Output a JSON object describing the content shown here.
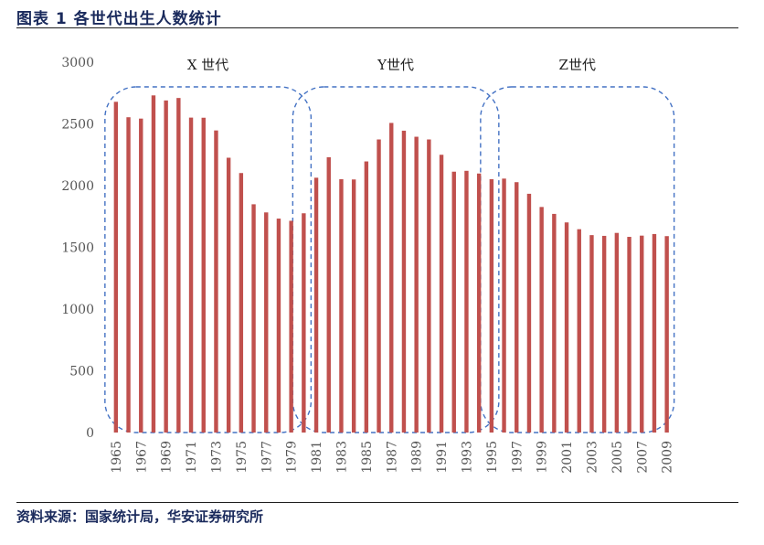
{
  "header": {
    "title": "图表 1 各世代出生人数统计"
  },
  "footer": {
    "source": "资料来源：国家统计局，华安证券研究所"
  },
  "colors": {
    "bar": "#c0504d",
    "generation_box": "#4472c4",
    "rule": "#1f1f1f",
    "title_text": "#1a2a5c"
  },
  "chart_data": {
    "type": "bar",
    "ylim": [
      0,
      3000
    ],
    "yticks": [
      0,
      500,
      1000,
      1500,
      2000,
      2500,
      3000
    ],
    "categories": [
      "1965",
      "1966",
      "1967",
      "1968",
      "1969",
      "1970",
      "1971",
      "1972",
      "1973",
      "1974",
      "1975",
      "1976",
      "1977",
      "1978",
      "1979",
      "1980",
      "1981",
      "1982",
      "1983",
      "1984",
      "1985",
      "1986",
      "1987",
      "1988",
      "1989",
      "1990",
      "1991",
      "1992",
      "1993",
      "1994",
      "1995",
      "1996",
      "1997",
      "1998",
      "1999",
      "2000",
      "2001",
      "2002",
      "2003",
      "2004",
      "2005",
      "2006",
      "2007",
      "2008",
      "2009"
    ],
    "xtick_labels": [
      "1965",
      "1967",
      "1969",
      "1971",
      "1973",
      "1975",
      "1977",
      "1979",
      "1981",
      "1983",
      "1985",
      "1987",
      "1989",
      "1991",
      "1993",
      "1995",
      "1997",
      "1999",
      "2001",
      "2003",
      "2005",
      "2007",
      "2009"
    ],
    "values": [
      2679,
      2554,
      2543,
      2731,
      2690,
      2710,
      2551,
      2550,
      2447,
      2226,
      2102,
      1849,
      1783,
      1733,
      1715,
      1776,
      2064,
      2230,
      2052,
      2050,
      2196,
      2374,
      2508,
      2445,
      2396,
      2374,
      2250,
      2113,
      2120,
      2098,
      2052,
      2057,
      2028,
      1934,
      1827,
      1771,
      1702,
      1647,
      1599,
      1593,
      1617,
      1585,
      1595,
      1608,
      1591
    ],
    "generations": [
      {
        "label": "X 世代",
        "from": "1965",
        "to": "1980"
      },
      {
        "label": "Y世代",
        "from": "1980",
        "to": "1995"
      },
      {
        "label": "Z世代",
        "from": "1995",
        "to": "2009"
      }
    ],
    "grid": false,
    "legend": "none"
  }
}
